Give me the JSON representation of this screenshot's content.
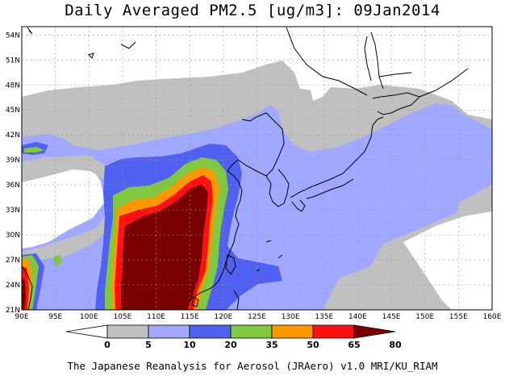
{
  "title": "Daily Averaged PM2.5 [ug/m3]: 09Jan2014",
  "credit": "The Japanese Reanalysis for Aerosol (JRAero) v1.0 MRI/KU_RIAM",
  "lat_ticks": [
    "54N",
    "51N",
    "48N",
    "45N",
    "42N",
    "39N",
    "36N",
    "33N",
    "30N",
    "27N",
    "24N",
    "21N"
  ],
  "lon_ticks": [
    "90E",
    "95E",
    "100E",
    "105E",
    "110E",
    "115E",
    "120E",
    "125E",
    "130E",
    "135E",
    "140E",
    "145E",
    "150E",
    "155E",
    "160E"
  ],
  "legend": {
    "ticks": [
      "0",
      "5",
      "10",
      "20",
      "35",
      "50",
      "65",
      "80"
    ],
    "colors": [
      "#ffffff",
      "#c0c0c0",
      "#a0a8ff",
      "#5060f0",
      "#80c840",
      "#ff9800",
      "#ff1010",
      "#7a0000"
    ]
  },
  "colors": {
    "c5": "#c0c0c0",
    "c10": "#a0a8ff",
    "c20": "#5060f0",
    "c35": "#80c840",
    "c50": "#ff9800",
    "c65": "#ff1010",
    "c80": "#7a0000"
  }
}
